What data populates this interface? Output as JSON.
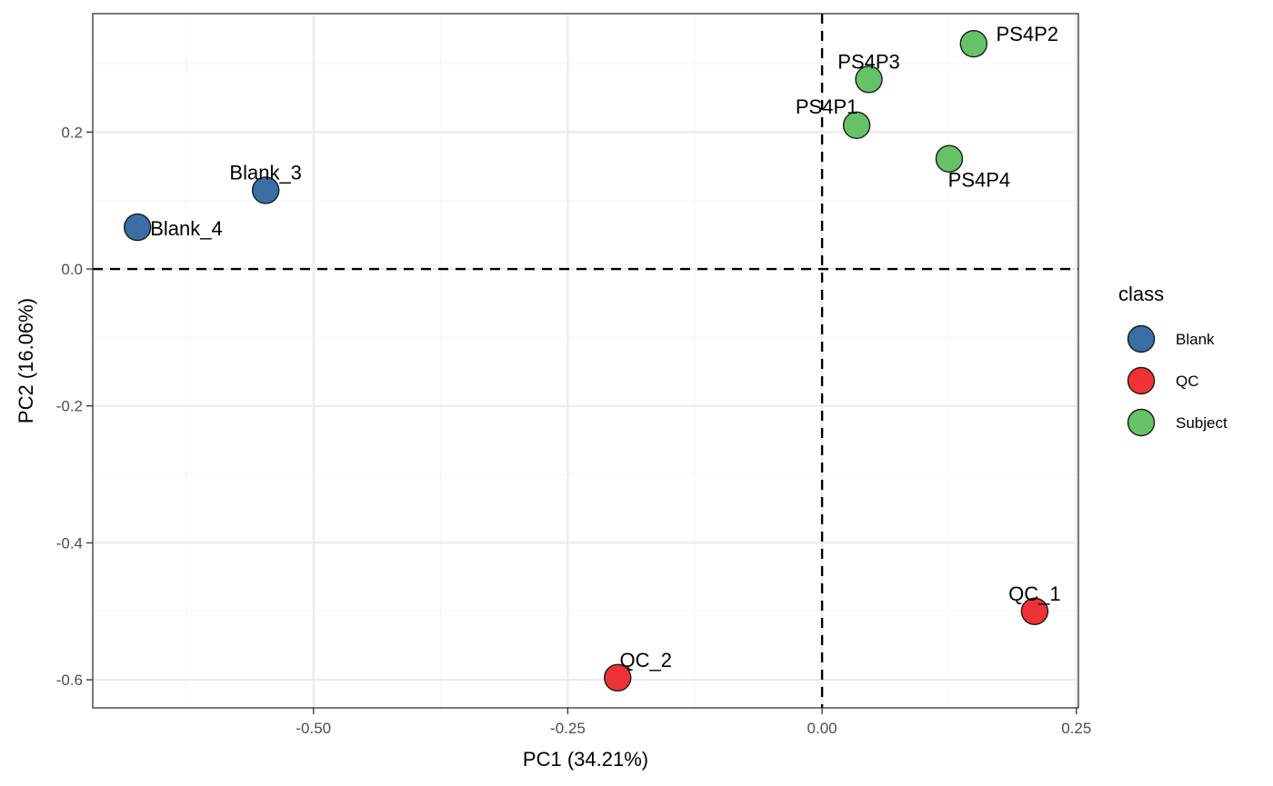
{
  "chart_data": {
    "type": "scatter",
    "title": "",
    "xlabel": "PC1 (34.21%)",
    "ylabel": "PC2 (16.06%)",
    "xlim": [
      -0.717,
      0.252
    ],
    "ylim": [
      -0.641,
      0.373
    ],
    "xticks": [
      -0.5,
      -0.25,
      0.0,
      0.25
    ],
    "xtick_labels": [
      "-0.50",
      "-0.25",
      "0.00",
      "0.25"
    ],
    "yticks": [
      -0.6,
      -0.4,
      -0.2,
      0.0,
      0.2
    ],
    "ytick_labels": [
      "-0.6",
      "-0.4",
      "-0.2",
      "0.0",
      "0.2"
    ],
    "grid": true,
    "reference_lines": {
      "x": 0,
      "y": 0,
      "style": "dashed"
    },
    "legend": {
      "title": "class",
      "placement": "right",
      "entries": [
        {
          "label": "Blank",
          "color": "#3a6ea5"
        },
        {
          "label": "QC",
          "color": "#f03236"
        },
        {
          "label": "Subject",
          "color": "#66c266"
        }
      ]
    },
    "points": [
      {
        "label": "Blank_4",
        "class": "Blank",
        "x": -0.673,
        "y": 0.061,
        "label_pos": "right"
      },
      {
        "label": "Blank_3",
        "class": "Blank",
        "x": -0.547,
        "y": 0.115,
        "label_pos": "above"
      },
      {
        "label": "QC_2",
        "class": "QC",
        "x": -0.201,
        "y": -0.597,
        "label_pos": "above-right"
      },
      {
        "label": "QC_1",
        "class": "QC",
        "x": 0.209,
        "y": -0.5,
        "label_pos": "above"
      },
      {
        "label": "PS4P1",
        "class": "Subject",
        "x": 0.034,
        "y": 0.21,
        "label_pos": "above-left"
      },
      {
        "label": "PS4P3",
        "class": "Subject",
        "x": 0.046,
        "y": 0.277,
        "label_pos": "above"
      },
      {
        "label": "PS4P2",
        "class": "Subject",
        "x": 0.149,
        "y": 0.329,
        "label_pos": "right-up"
      },
      {
        "label": "PS4P4",
        "class": "Subject",
        "x": 0.125,
        "y": 0.161,
        "label_pos": "below"
      }
    ]
  }
}
